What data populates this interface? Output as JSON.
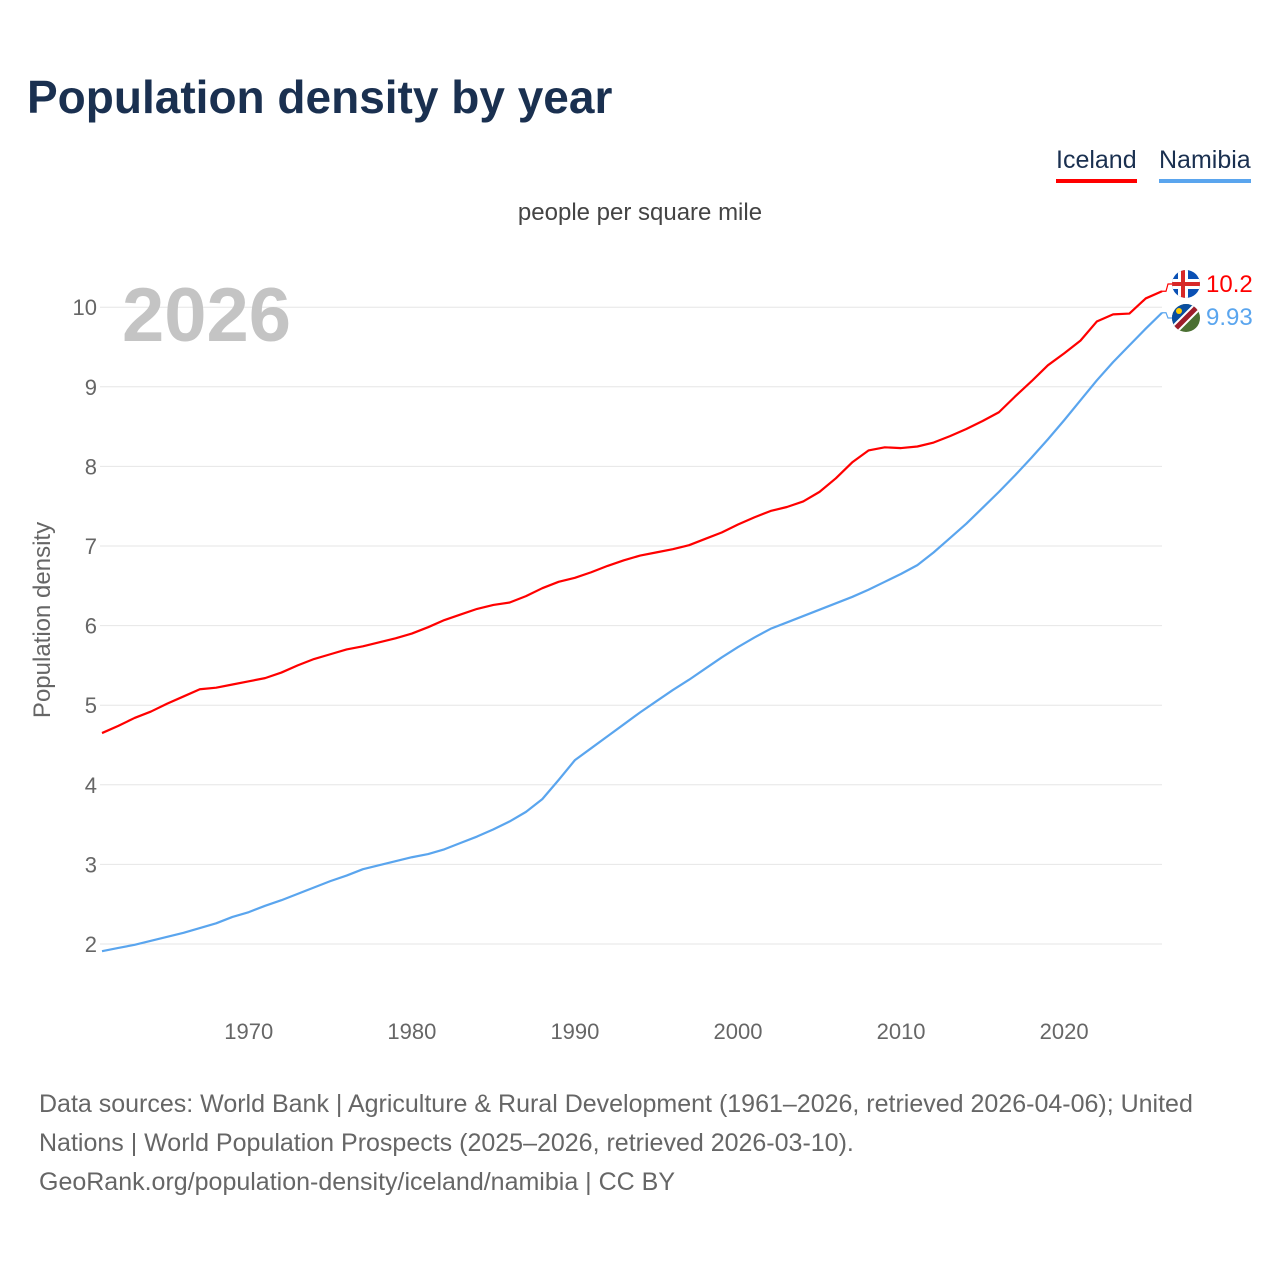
{
  "title": "Population density by year",
  "legend": [
    {
      "name": "Iceland",
      "color": "#ff0000"
    },
    {
      "name": "Namibia",
      "color": "#5aa5ee"
    }
  ],
  "subtitle": "people per square mile",
  "year_watermark": "2026",
  "end_labels": {
    "iceland": "10.2",
    "namibia": "9.93"
  },
  "footer": {
    "line1": "Data sources: World Bank | Agriculture & Rural Development (1961–2026, retrieved 2026-04-06); United Nations | World Population Prospects (2025–2026, retrieved 2026-03-10).",
    "line2": "GeoRank.org/population-density/iceland/namibia | CC BY"
  },
  "chart_data": {
    "type": "line",
    "title": "Population density by year",
    "ylabel": "Population density",
    "xlabel": "",
    "ylim": [
      1.5,
      10.5
    ],
    "xlim": [
      1961,
      2026
    ],
    "yticks": [
      "2",
      "3",
      "4",
      "5",
      "6",
      "7",
      "8",
      "9",
      "10"
    ],
    "xticks": [
      "1970",
      "1980",
      "1990",
      "2000",
      "2010",
      "2020"
    ],
    "grid": true,
    "legend_placement": "top-right",
    "x_start": 1961,
    "series": [
      {
        "name": "Iceland",
        "color": "#ff0000",
        "values": [
          4.65,
          4.74,
          4.84,
          4.92,
          5.02,
          5.11,
          5.2,
          5.22,
          5.26,
          5.3,
          5.34,
          5.41,
          5.5,
          5.58,
          5.64,
          5.7,
          5.74,
          5.79,
          5.84,
          5.9,
          5.98,
          6.07,
          6.14,
          6.21,
          6.26,
          6.29,
          6.37,
          6.47,
          6.55,
          6.6,
          6.67,
          6.75,
          6.82,
          6.88,
          6.92,
          6.96,
          7.01,
          7.09,
          7.17,
          7.27,
          7.36,
          7.44,
          7.49,
          7.56,
          7.68,
          7.85,
          8.05,
          8.2,
          8.24,
          8.23,
          8.25,
          8.3,
          8.38,
          8.47,
          8.57,
          8.68,
          8.88,
          9.07,
          9.27,
          9.42,
          9.58,
          9.82,
          9.91,
          9.92,
          10.11,
          10.2
        ]
      },
      {
        "name": "Namibia",
        "color": "#5aa5ee",
        "values": [
          1.91,
          1.95,
          1.99,
          2.04,
          2.09,
          2.14,
          2.2,
          2.26,
          2.34,
          2.4,
          2.48,
          2.55,
          2.63,
          2.71,
          2.79,
          2.86,
          2.94,
          2.99,
          3.04,
          3.09,
          3.13,
          3.19,
          3.27,
          3.35,
          3.44,
          3.54,
          3.66,
          3.82,
          4.06,
          4.31,
          4.46,
          4.61,
          4.76,
          4.91,
          5.05,
          5.19,
          5.32,
          5.46,
          5.6,
          5.73,
          5.85,
          5.96,
          6.04,
          6.12,
          6.2,
          6.28,
          6.36,
          6.45,
          6.55,
          6.65,
          6.76,
          6.92,
          7.1,
          7.28,
          7.48,
          7.68,
          7.89,
          8.11,
          8.34,
          8.58,
          8.83,
          9.08,
          9.31,
          9.52,
          9.73,
          9.93
        ]
      }
    ]
  }
}
